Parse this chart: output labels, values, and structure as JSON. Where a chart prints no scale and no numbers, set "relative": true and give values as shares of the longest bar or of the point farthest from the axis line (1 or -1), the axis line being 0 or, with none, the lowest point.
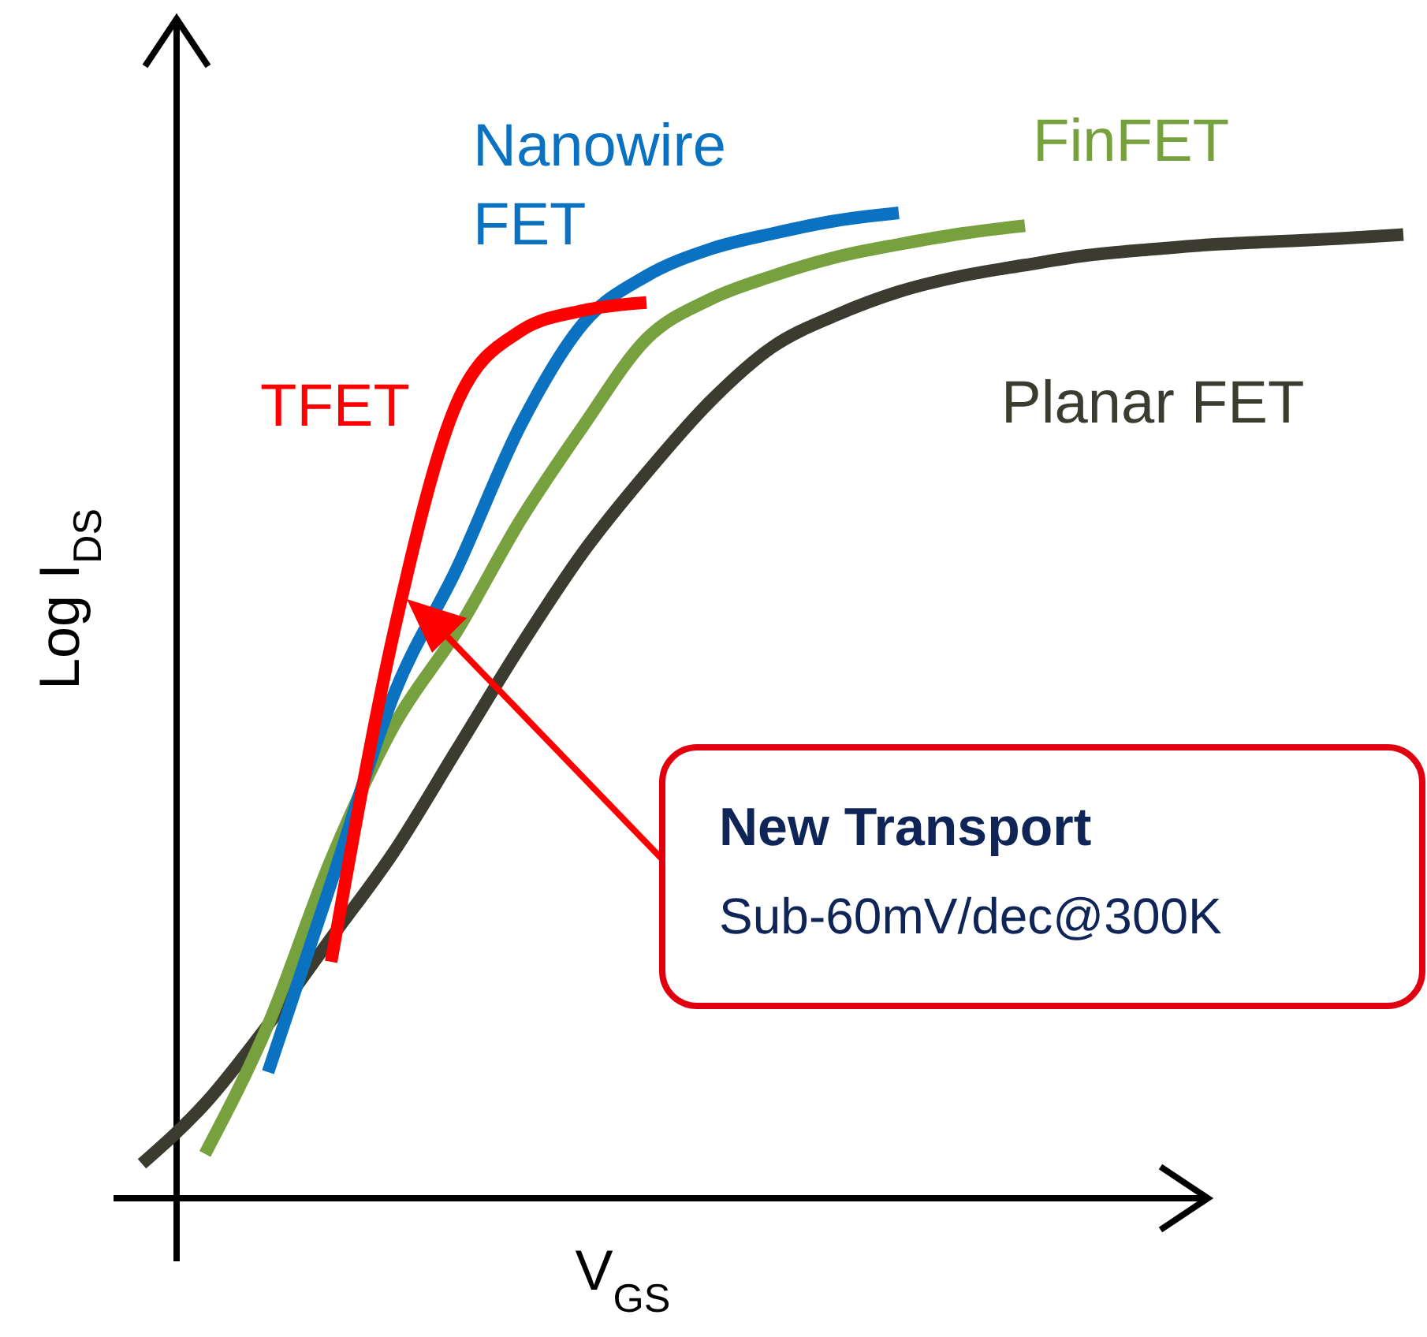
{
  "chart_data": {
    "type": "line",
    "relative": true,
    "xlabel": "V$_{GS}$",
    "ylabel": "Log I$_{DS}$",
    "categories": [
      null,
      null,
      null,
      null,
      null,
      null,
      null,
      null,
      null,
      null,
      null,
      null,
      null,
      null,
      null,
      null,
      null,
      null,
      null,
      null,
      null
    ],
    "series": [
      {
        "name": "Planar FET",
        "color": "#3b3b2f",
        "values": [
          0.035,
          0.096,
          0.176,
          0.264,
          0.352,
          0.456,
          0.56,
          0.656,
          0.736,
          0.808,
          0.864,
          0.896,
          0.92,
          0.936,
          0.947,
          0.957,
          0.963,
          0.968,
          0.971,
          0.974,
          0.978
        ]
      },
      {
        "name": "FinFET",
        "color": "#77a03e",
        "values": [
          null,
          0.045,
          0.176,
          0.344,
          0.48,
          0.576,
          0.688,
          0.784,
          0.872,
          0.912,
          0.936,
          0.955,
          0.968,
          0.979,
          0.987,
          null,
          null,
          null,
          null,
          null,
          null
        ]
      },
      {
        "name": "Nanowire FET",
        "color": "#0a72c0",
        "values": [
          null,
          null,
          0.128,
          0.32,
          0.512,
          0.64,
          0.784,
          0.888,
          0.936,
          0.963,
          0.979,
          0.992,
          1,
          null,
          null,
          null,
          null,
          null,
          null,
          null,
          null
        ]
      },
      {
        "name": "TFET",
        "color": "#ff0000",
        "values": [
          null,
          null,
          null,
          0.24,
          0.576,
          0.808,
          0.88,
          0.901,
          0.909,
          null,
          null,
          null,
          null,
          null,
          null,
          null,
          null,
          null,
          null,
          null,
          null
        ]
      }
    ],
    "annotations": [
      "New Transport",
      "Sub-60mV/dec@300K"
    ]
  }
}
